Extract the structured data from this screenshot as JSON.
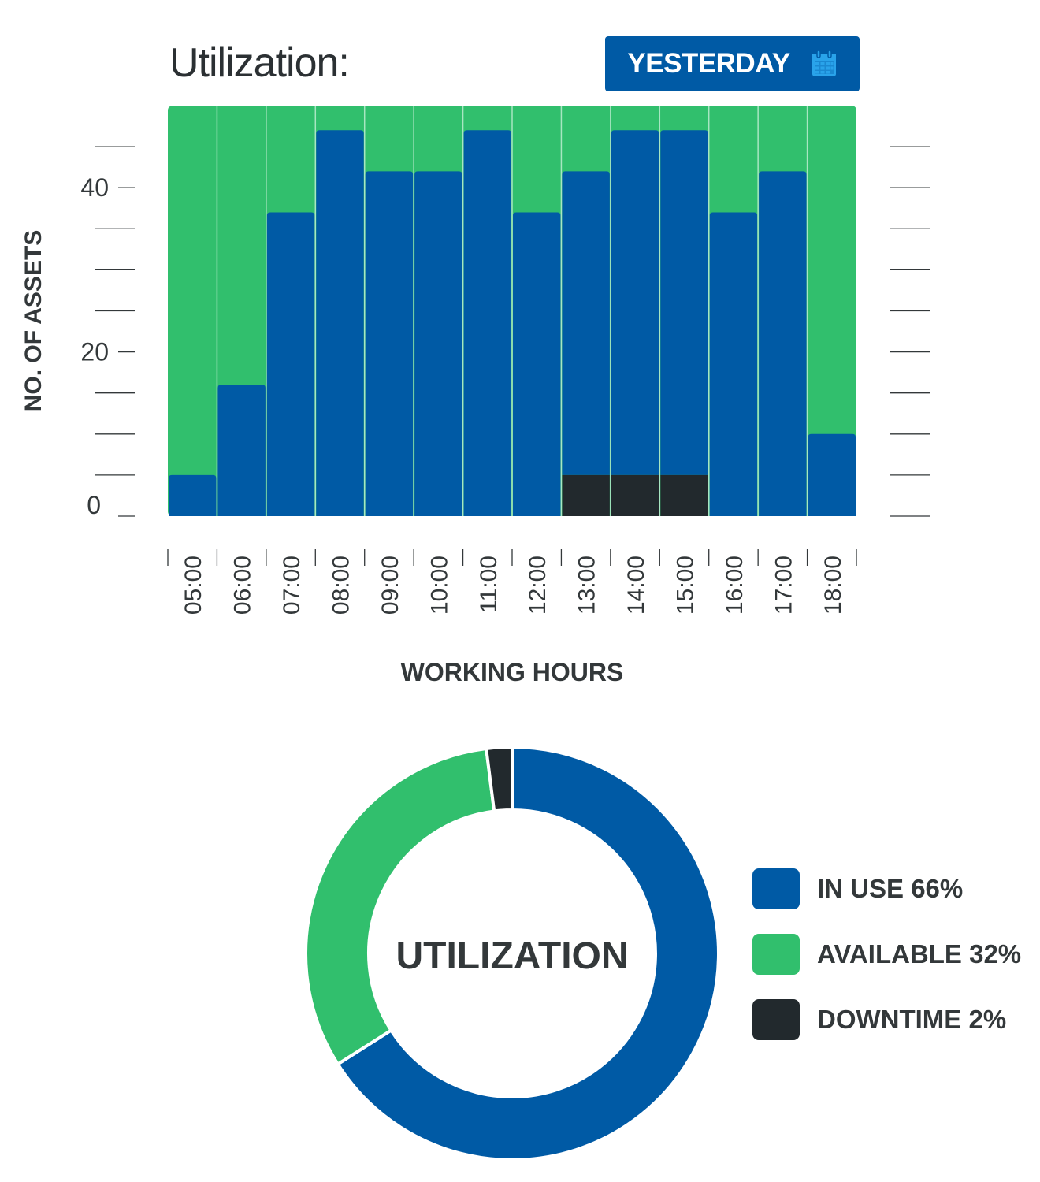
{
  "header": {
    "title": "Utilization:",
    "date_button_label": "YESTERDAY",
    "date_button_icon": "calendar-icon"
  },
  "colors": {
    "in_use": "#005aa5",
    "available": "#31bf6d",
    "downtime": "#22292d",
    "accent": "#005aa5",
    "icon": "#29a3ea"
  },
  "chart_data": [
    {
      "type": "bar",
      "stacked": true,
      "categories": [
        "05:00",
        "06:00",
        "07:00",
        "08:00",
        "09:00",
        "10:00",
        "11:00",
        "12:00",
        "13:00",
        "14:00",
        "15:00",
        "16:00",
        "17:00",
        "18:00"
      ],
      "series": [
        {
          "key": "downtime",
          "values": [
            0,
            0,
            0,
            0,
            0,
            0,
            0,
            0,
            5,
            5,
            5,
            0,
            0,
            0
          ]
        },
        {
          "key": "in_use",
          "values": [
            5,
            16,
            37,
            47,
            42,
            42,
            47,
            37,
            37,
            42,
            42,
            37,
            42,
            10
          ]
        },
        {
          "key": "available",
          "values": [
            45,
            34,
            13,
            3,
            8,
            8,
            3,
            13,
            8,
            3,
            3,
            13,
            8,
            40
          ]
        }
      ],
      "xlabel": "WORKING HOURS",
      "ylabel": "NO. OF ASSETS",
      "yticks": [
        0,
        20,
        40
      ],
      "ylim": [
        0,
        50
      ],
      "grid": false
    },
    {
      "type": "pie",
      "donut": true,
      "center_label": "UTILIZATION",
      "slices": [
        {
          "key": "in_use",
          "label": "IN USE 66%",
          "value": 66
        },
        {
          "key": "available",
          "label": "AVAILABLE 32%",
          "value": 32
        },
        {
          "key": "downtime",
          "label": "DOWNTIME 2%",
          "value": 2
        }
      ],
      "legend": "right"
    }
  ]
}
